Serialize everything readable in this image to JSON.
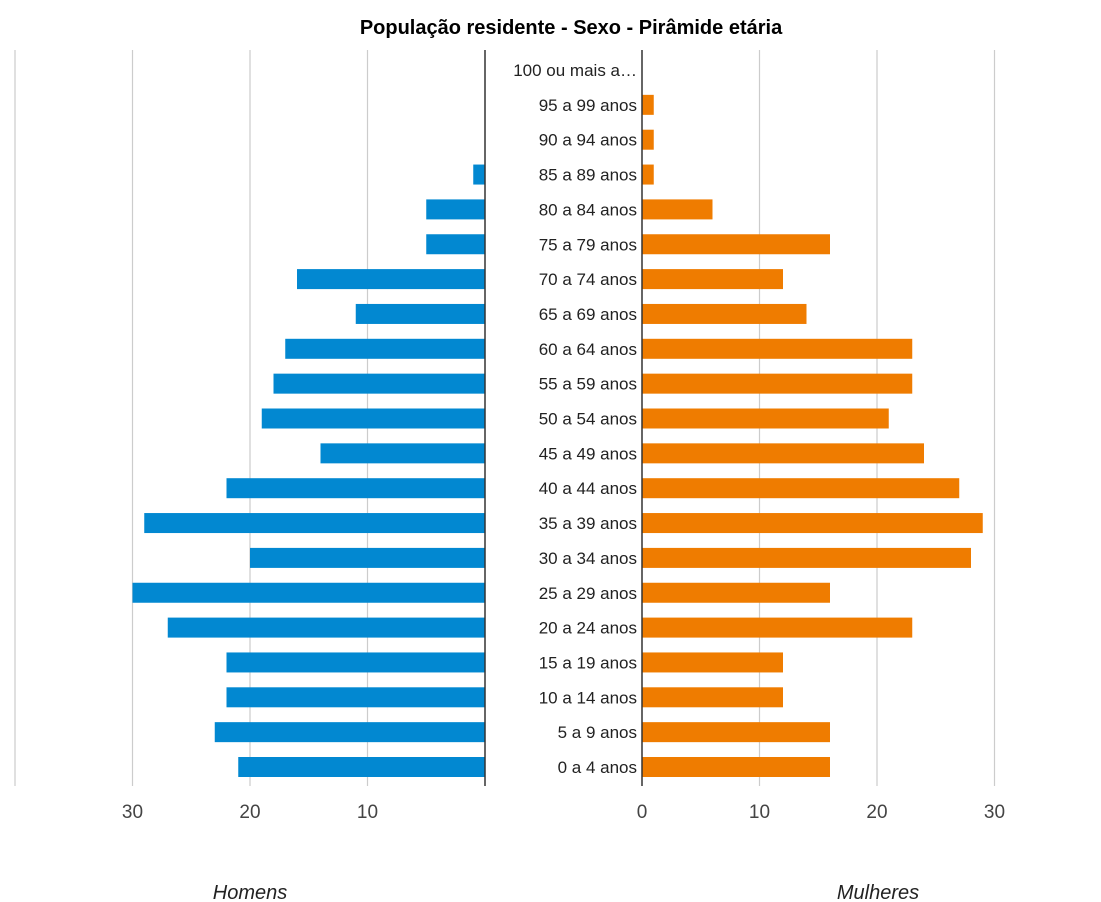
{
  "chart_data": {
    "type": "bar",
    "title": "População residente - Sexo - Pirâmide etária",
    "categories": [
      "100 ou mais a…",
      "95 a 99 anos",
      "90 a 94 anos",
      "85 a 89 anos",
      "80 a 84 anos",
      "75 a 79 anos",
      "70 a 74 anos",
      "65 a 69 anos",
      "60 a 64 anos",
      "55 a 59 anos",
      "50 a 54 anos",
      "45 a 49 anos",
      "40 a 44 anos",
      "35 a 39 anos",
      "30 a 34 anos",
      "25 a 29 anos",
      "20 a 24 anos",
      "15 a 19 anos",
      "10 a 14 anos",
      "5 a 9 anos",
      "0 a 4 anos"
    ],
    "series": [
      {
        "name": "Homens",
        "color": "#0288D1",
        "values": [
          0,
          0,
          0,
          1,
          5,
          5,
          16,
          11,
          17,
          18,
          19,
          14,
          22,
          29,
          20,
          30,
          27,
          22,
          22,
          23,
          21
        ]
      },
      {
        "name": "Mulheres",
        "color": "#EF7C00",
        "values": [
          0,
          1,
          1,
          1,
          6,
          16,
          12,
          14,
          23,
          23,
          21,
          24,
          27,
          29,
          28,
          16,
          23,
          12,
          12,
          16,
          16
        ]
      }
    ],
    "left_axis": {
      "ticks": [
        30,
        20,
        10
      ],
      "label": "Homens"
    },
    "right_axis": {
      "ticks": [
        0,
        10,
        20,
        30
      ],
      "label": "Mulheres"
    },
    "xlim": [
      0,
      40
    ],
    "grid": true,
    "legend": "none"
  }
}
